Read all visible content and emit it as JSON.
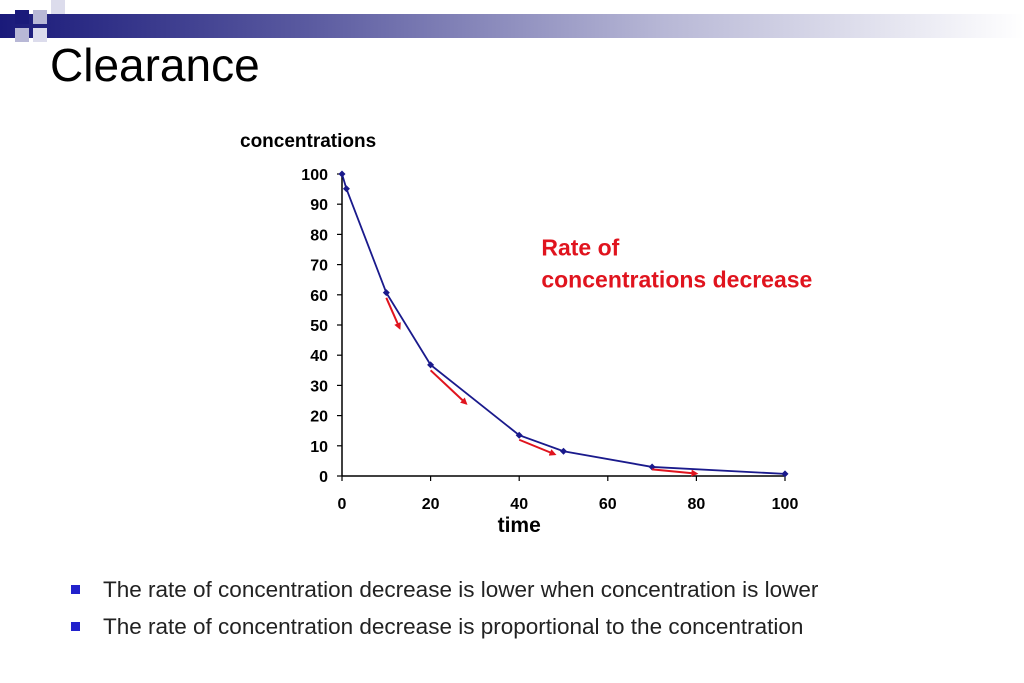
{
  "slide": {
    "title": "Clearance",
    "bullets": [
      "The rate of concentration decrease is lower when concentration is lower",
      "The rate of concentration decrease is proportional to the concentration"
    ]
  },
  "colors": {
    "line": "#1a1a8c",
    "arrows": "#e0141e",
    "annotation": "#e0141e",
    "bullet": "#2222cc"
  },
  "chart_data": {
    "type": "line",
    "ylabel": "concentrations",
    "xlabel": "time",
    "xlim": [
      0,
      100
    ],
    "ylim": [
      0,
      100
    ],
    "x_ticks": [
      0,
      20,
      40,
      60,
      80,
      100
    ],
    "y_ticks": [
      0,
      10,
      20,
      30,
      40,
      50,
      60,
      70,
      80,
      90,
      100
    ],
    "grid": false,
    "series": [
      {
        "x": [
          0,
          1,
          10,
          20,
          40,
          50,
          70,
          100
        ],
        "y": [
          100,
          95.1,
          60.7,
          36.8,
          13.5,
          8.2,
          3.0,
          0.7
        ]
      }
    ],
    "annotation": {
      "lines": [
        "Rate of",
        "concentrations decrease"
      ],
      "x": 45,
      "y": 73
    },
    "rate_arrows": [
      {
        "x1": 10,
        "y1": 59,
        "x2": 13,
        "y2": 49
      },
      {
        "x1": 20,
        "y1": 35,
        "x2": 28,
        "y2": 24
      },
      {
        "x1": 40,
        "y1": 12,
        "x2": 48,
        "y2": 7.2
      },
      {
        "x1": 70,
        "y1": 2.2,
        "x2": 80,
        "y2": 0.8
      }
    ]
  }
}
